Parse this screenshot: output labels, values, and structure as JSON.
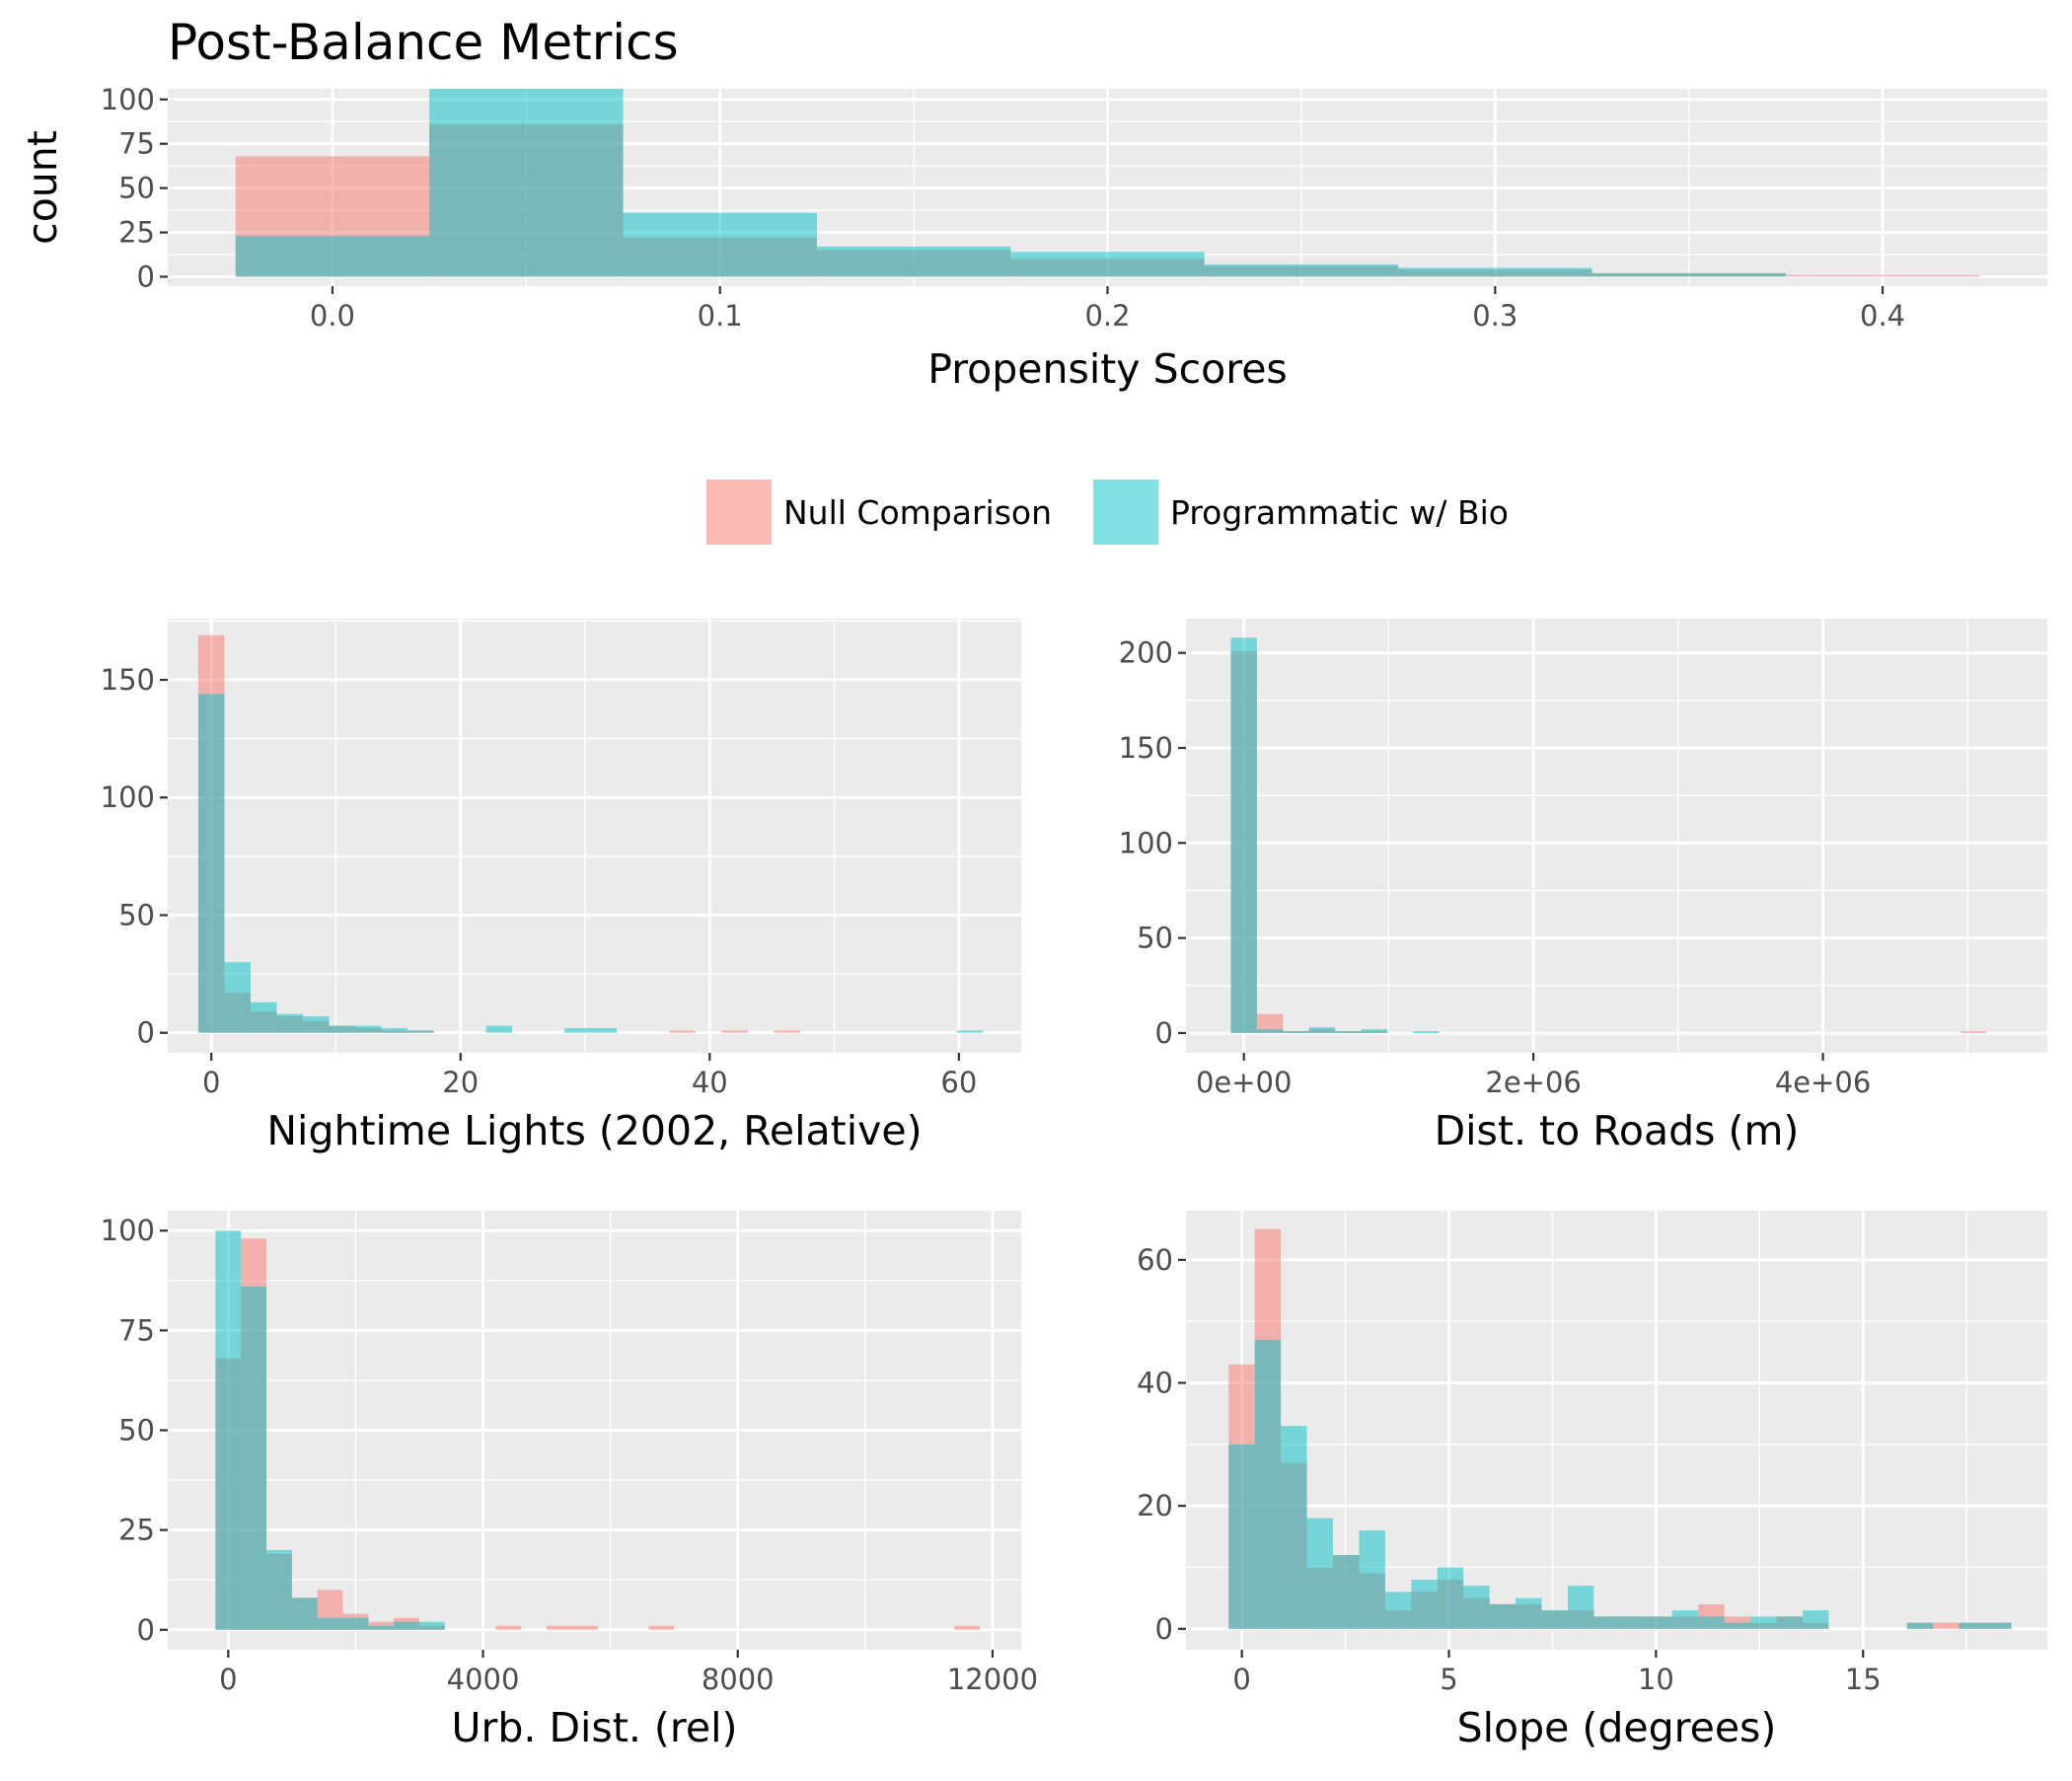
{
  "title": "Post-Balance Metrics",
  "colors": {
    "null": "#F8766D",
    "prog": "#00BFC4",
    "panel_bg": "#EBEBEB",
    "grid": "#FFFFFF"
  },
  "legend": {
    "items": [
      {
        "label": "Null Comparison",
        "color": "#F8766D"
      },
      {
        "label": "Programmatic w/ Bio",
        "color": "#00BFC4"
      }
    ]
  },
  "chart_data": [
    {
      "type": "histogram",
      "id": "propensity",
      "xlabel": "Propensity Scores",
      "ylabel": "count",
      "xlim": [
        -0.0425,
        0.4425
      ],
      "ylim": [
        -5.3,
        106
      ],
      "xticks": [
        0.0,
        0.1,
        0.2,
        0.3,
        0.4
      ],
      "xtick_labels": [
        "0.0",
        "0.1",
        "0.2",
        "0.3",
        "0.4"
      ],
      "yticks": [
        0,
        25,
        50,
        75,
        100
      ],
      "ytick_labels": [
        "0",
        "25",
        "50",
        "75",
        "100"
      ],
      "bins": [
        [
          -0.025,
          0.025
        ],
        [
          0.025,
          0.075
        ],
        [
          0.075,
          0.125
        ],
        [
          0.125,
          0.175
        ],
        [
          0.175,
          0.225
        ],
        [
          0.225,
          0.275
        ],
        [
          0.275,
          0.325
        ],
        [
          0.325,
          0.375
        ],
        [
          0.375,
          0.425
        ]
      ],
      "series": [
        {
          "name": "Null Comparison",
          "key": "null",
          "values": [
            68,
            86,
            22,
            15,
            10,
            6,
            4,
            2,
            1
          ]
        },
        {
          "name": "Programmatic w/ Bio",
          "key": "prog",
          "values": [
            23,
            106,
            36,
            17,
            14,
            7,
            5,
            2,
            0
          ]
        }
      ]
    },
    {
      "type": "histogram",
      "id": "nightlights",
      "xlabel": "Nightime Lights (2002, Relative)",
      "ylabel": "",
      "xlim": [
        -3.5,
        65
      ],
      "ylim": [
        -8.5,
        176
      ],
      "xticks": [
        0,
        20,
        40,
        60
      ],
      "xtick_labels": [
        "0",
        "20",
        "40",
        "60"
      ],
      "yticks": [
        0,
        50,
        100,
        150
      ],
      "ytick_labels": [
        "0",
        "50",
        "100",
        "150"
      ],
      "bin_start": -1.05,
      "bin_width": 2.1,
      "series": [
        {
          "name": "Null Comparison",
          "key": "null",
          "values": [
            169,
            17,
            9,
            7,
            5,
            3,
            2,
            1,
            1,
            0,
            0,
            0,
            0,
            0,
            0,
            0,
            0,
            0,
            1,
            0,
            1,
            0,
            1,
            0,
            0,
            0,
            0,
            0,
            0,
            0
          ]
        },
        {
          "name": "Programmatic w/ Bio",
          "key": "prog",
          "values": [
            144,
            30,
            13,
            8,
            7,
            3,
            3,
            2,
            1,
            0,
            0,
            3,
            0,
            0,
            2,
            2,
            0,
            0,
            0,
            0,
            0,
            0,
            0,
            0,
            0,
            0,
            0,
            0,
            0,
            1
          ]
        }
      ]
    },
    {
      "type": "histogram",
      "id": "roads",
      "xlabel": "Dist. to Roads (m)",
      "ylabel": "",
      "xlim": [
        -400000,
        5550000
      ],
      "ylim": [
        -10.4,
        218
      ],
      "xticks": [
        0,
        2000000,
        4000000
      ],
      "xtick_labels": [
        "0e+00",
        "2e+06",
        "4e+06"
      ],
      "yticks": [
        0,
        50,
        100,
        150,
        200
      ],
      "ytick_labels": [
        "0",
        "50",
        "100",
        "150",
        "200"
      ],
      "bin_start": -90000,
      "bin_width": 180000,
      "series": [
        {
          "name": "Null Comparison",
          "key": "null",
          "values": [
            201,
            10,
            1,
            2,
            1,
            1,
            0,
            0,
            0,
            0,
            0,
            0,
            0,
            0,
            0,
            0,
            0,
            0,
            0,
            0,
            0,
            0,
            0,
            0,
            0,
            0,
            0,
            0,
            1
          ]
        },
        {
          "name": "Programmatic w/ Bio",
          "key": "prog",
          "values": [
            208,
            2,
            1,
            3,
            1,
            2,
            0,
            1,
            0,
            0,
            0,
            0,
            0,
            0,
            0,
            0,
            0,
            0,
            0,
            0,
            0,
            0,
            0,
            0,
            0,
            0,
            0,
            0,
            0
          ]
        }
      ]
    },
    {
      "type": "histogram",
      "id": "urb",
      "xlabel": "Urb. Dist. (rel)",
      "ylabel": "",
      "xlim": [
        -950,
        12450
      ],
      "ylim": [
        -5,
        105
      ],
      "xticks": [
        0,
        4000,
        8000,
        12000
      ],
      "xtick_labels": [
        "0",
        "4000",
        "8000",
        "12000"
      ],
      "yticks": [
        0,
        25,
        50,
        75,
        100
      ],
      "ytick_labels": [
        "0",
        "25",
        "50",
        "75",
        "100"
      ],
      "bin_start": -200,
      "bin_width": 400,
      "series": [
        {
          "name": "Null Comparison",
          "key": "null",
          "values": [
            68,
            98,
            19,
            8,
            10,
            4,
            2,
            3,
            1,
            0,
            0,
            1,
            0,
            1,
            1,
            0,
            0,
            1,
            0,
            0,
            0,
            0,
            0,
            0,
            0,
            0,
            0,
            0,
            0,
            1
          ]
        },
        {
          "name": "Programmatic w/ Bio",
          "key": "prog",
          "values": [
            100,
            86,
            20,
            8,
            3,
            3,
            1,
            2,
            2,
            0,
            0,
            0,
            0,
            0,
            0,
            0,
            0,
            0,
            0,
            0,
            0,
            0,
            0,
            0,
            0,
            0,
            0,
            0,
            0,
            0
          ]
        }
      ]
    },
    {
      "type": "histogram",
      "id": "slope",
      "xlabel": "Slope (degrees)",
      "ylabel": "",
      "xlim": [
        -1.35,
        19.45
      ],
      "ylim": [
        -3.4,
        68
      ],
      "xticks": [
        0,
        5,
        10,
        15
      ],
      "xtick_labels": [
        "0",
        "5",
        "10",
        "15"
      ],
      "yticks": [
        0,
        20,
        40,
        60
      ],
      "ytick_labels": [
        "0",
        "20",
        "40",
        "60"
      ],
      "bin_start": -0.32,
      "bin_width": 0.63,
      "series": [
        {
          "name": "Null Comparison",
          "key": "null",
          "values": [
            43,
            65,
            27,
            10,
            12,
            9,
            3,
            6,
            8,
            5,
            4,
            4,
            3,
            3,
            2,
            2,
            2,
            2,
            4,
            2,
            1,
            2,
            1,
            0,
            0,
            0,
            1,
            1,
            1,
            1
          ]
        },
        {
          "name": "Programmatic w/ Bio",
          "key": "prog",
          "values": [
            30,
            47,
            33,
            18,
            12,
            16,
            6,
            8,
            10,
            7,
            4,
            5,
            3,
            7,
            2,
            2,
            2,
            3,
            2,
            1,
            2,
            2,
            3,
            0,
            0,
            0,
            1,
            0,
            1,
            1
          ]
        }
      ]
    }
  ]
}
